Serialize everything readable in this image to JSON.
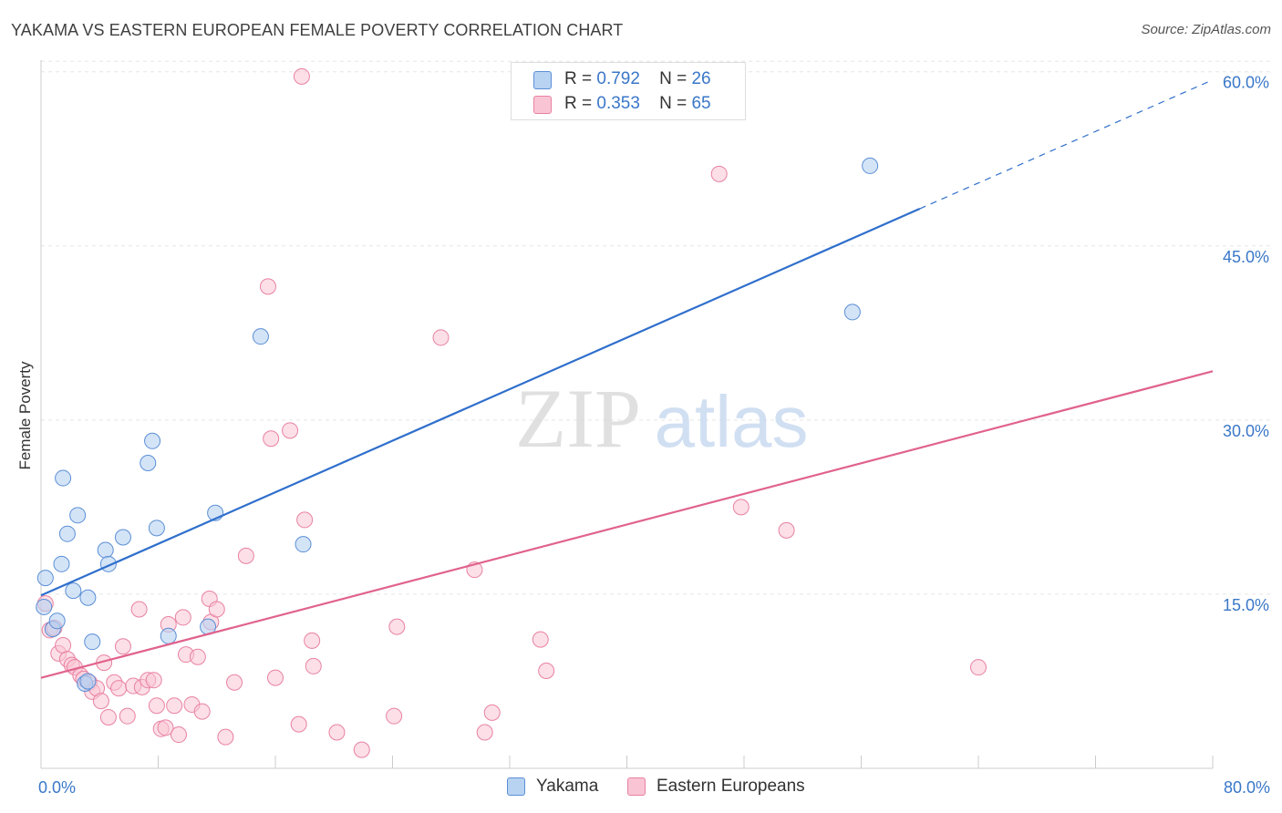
{
  "chart_data": {
    "type": "scatter",
    "title": "YAKAMA VS EASTERN EUROPEAN FEMALE POVERTY CORRELATION CHART",
    "source": "Source: ZipAtlas.com",
    "xlabel": "",
    "ylabel": "Female Poverty",
    "xlim": [
      0,
      80
    ],
    "ylim": [
      0,
      61
    ],
    "x_tick_labels": [
      "0.0%",
      "80.0%"
    ],
    "y_ticks": [
      15,
      30,
      45,
      60
    ],
    "y_tick_labels": [
      "15.0%",
      "30.0%",
      "45.0%",
      "60.0%"
    ],
    "grid": true,
    "watermark": {
      "zip": "ZIP",
      "atlas": "atlas"
    },
    "legend": {
      "r_label": "R =",
      "n_label": "N =",
      "entries": [
        {
          "name": "Yakama",
          "r": "0.792",
          "n": "26"
        },
        {
          "name": "Eastern Europeans",
          "r": "0.353",
          "n": "65"
        }
      ]
    },
    "colors": {
      "yakama_fill": "#b8d2f2",
      "yakama_stroke": "#5b8fd6",
      "yakama_line": "#2f6fcc",
      "eastern_fill": "#f9c4d3",
      "eastern_stroke": "#e882a2",
      "eastern_line": "#e0638d",
      "axis_label": "#3a77c8",
      "grid": "#e5e5e5"
    },
    "series": [
      {
        "name": "Yakama",
        "trendline": {
          "x_start": 0,
          "y_start": 14.9,
          "x_end": 60,
          "y_end": 48.2,
          "dashed_to_x": 80,
          "dashed_to_y": 59.3
        },
        "points": [
          [
            0.2,
            13.9
          ],
          [
            0.3,
            16.4
          ],
          [
            0.8,
            12.0
          ],
          [
            1.1,
            12.7
          ],
          [
            1.4,
            17.6
          ],
          [
            1.5,
            25.0
          ],
          [
            1.8,
            20.2
          ],
          [
            2.2,
            15.3
          ],
          [
            2.5,
            21.8
          ],
          [
            3.0,
            7.3
          ],
          [
            3.2,
            7.5
          ],
          [
            3.2,
            14.7
          ],
          [
            3.5,
            10.9
          ],
          [
            4.4,
            18.8
          ],
          [
            4.6,
            17.6
          ],
          [
            5.6,
            19.9
          ],
          [
            7.3,
            26.3
          ],
          [
            7.6,
            28.2
          ],
          [
            7.9,
            20.7
          ],
          [
            8.7,
            11.4
          ],
          [
            11.4,
            12.2
          ],
          [
            11.9,
            22.0
          ],
          [
            15.0,
            37.2
          ],
          [
            17.9,
            19.3
          ],
          [
            55.4,
            39.3
          ],
          [
            56.6,
            51.9
          ]
        ]
      },
      {
        "name": "Eastern Europeans",
        "trendline": {
          "x_start": 0,
          "y_start": 7.8,
          "x_end": 80,
          "y_end": 34.2
        },
        "points": [
          [
            0.3,
            14.2
          ],
          [
            0.6,
            11.9
          ],
          [
            0.9,
            12.1
          ],
          [
            1.2,
            9.9
          ],
          [
            1.5,
            10.6
          ],
          [
            1.8,
            9.4
          ],
          [
            2.1,
            8.9
          ],
          [
            2.3,
            8.7
          ],
          [
            2.7,
            8.0
          ],
          [
            2.9,
            7.7
          ],
          [
            3.3,
            7.4
          ],
          [
            3.5,
            6.6
          ],
          [
            3.8,
            6.9
          ],
          [
            4.1,
            5.8
          ],
          [
            4.3,
            9.1
          ],
          [
            4.6,
            4.4
          ],
          [
            5.0,
            7.4
          ],
          [
            5.3,
            6.9
          ],
          [
            5.6,
            10.5
          ],
          [
            5.9,
            4.5
          ],
          [
            6.3,
            7.1
          ],
          [
            6.7,
            13.7
          ],
          [
            6.9,
            7.0
          ],
          [
            7.3,
            7.6
          ],
          [
            7.7,
            7.6
          ],
          [
            7.9,
            5.4
          ],
          [
            8.2,
            3.4
          ],
          [
            8.5,
            3.5
          ],
          [
            8.7,
            12.4
          ],
          [
            9.1,
            5.4
          ],
          [
            9.4,
            2.9
          ],
          [
            9.7,
            13.0
          ],
          [
            9.9,
            9.8
          ],
          [
            10.3,
            5.5
          ],
          [
            10.7,
            9.6
          ],
          [
            11.0,
            4.9
          ],
          [
            11.5,
            14.6
          ],
          [
            11.6,
            12.6
          ],
          [
            12.0,
            13.7
          ],
          [
            12.6,
            2.7
          ],
          [
            13.2,
            7.4
          ],
          [
            14.0,
            18.3
          ],
          [
            15.5,
            41.5
          ],
          [
            15.7,
            28.4
          ],
          [
            16.0,
            7.8
          ],
          [
            17.0,
            29.1
          ],
          [
            17.6,
            3.8
          ],
          [
            18.0,
            21.4
          ],
          [
            18.5,
            11.0
          ],
          [
            18.6,
            8.8
          ],
          [
            20.2,
            3.1
          ],
          [
            21.9,
            1.6
          ],
          [
            24.1,
            4.5
          ],
          [
            24.3,
            12.2
          ],
          [
            27.3,
            37.1
          ],
          [
            29.6,
            17.1
          ],
          [
            30.3,
            3.1
          ],
          [
            30.8,
            4.8
          ],
          [
            34.1,
            11.1
          ],
          [
            34.5,
            8.4
          ],
          [
            17.8,
            59.6
          ],
          [
            46.3,
            51.2
          ],
          [
            47.8,
            22.5
          ],
          [
            50.9,
            20.5
          ],
          [
            64.0,
            8.7
          ]
        ]
      }
    ]
  }
}
